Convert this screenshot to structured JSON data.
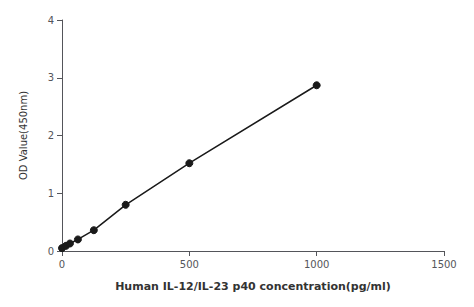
{
  "chart_data": {
    "type": "line",
    "x": [
      0,
      15.625,
      31.25,
      62.5,
      125,
      250,
      500,
      1000
    ],
    "values": [
      0.05,
      0.09,
      0.13,
      0.2,
      0.36,
      0.8,
      1.52,
      2.87
    ],
    "color": "#1a1a1a",
    "marker": "circle",
    "xlabel": "Human IL-12/IL-23 p40 concentration(pg/ml)",
    "ylabel": "OD Value(450nm)",
    "xlim": [
      0,
      1500
    ],
    "ylim": [
      0,
      4
    ],
    "xticks": [
      0,
      500,
      1000,
      1500
    ],
    "yticks": [
      0,
      1,
      2,
      3,
      4
    ],
    "grid": false
  }
}
